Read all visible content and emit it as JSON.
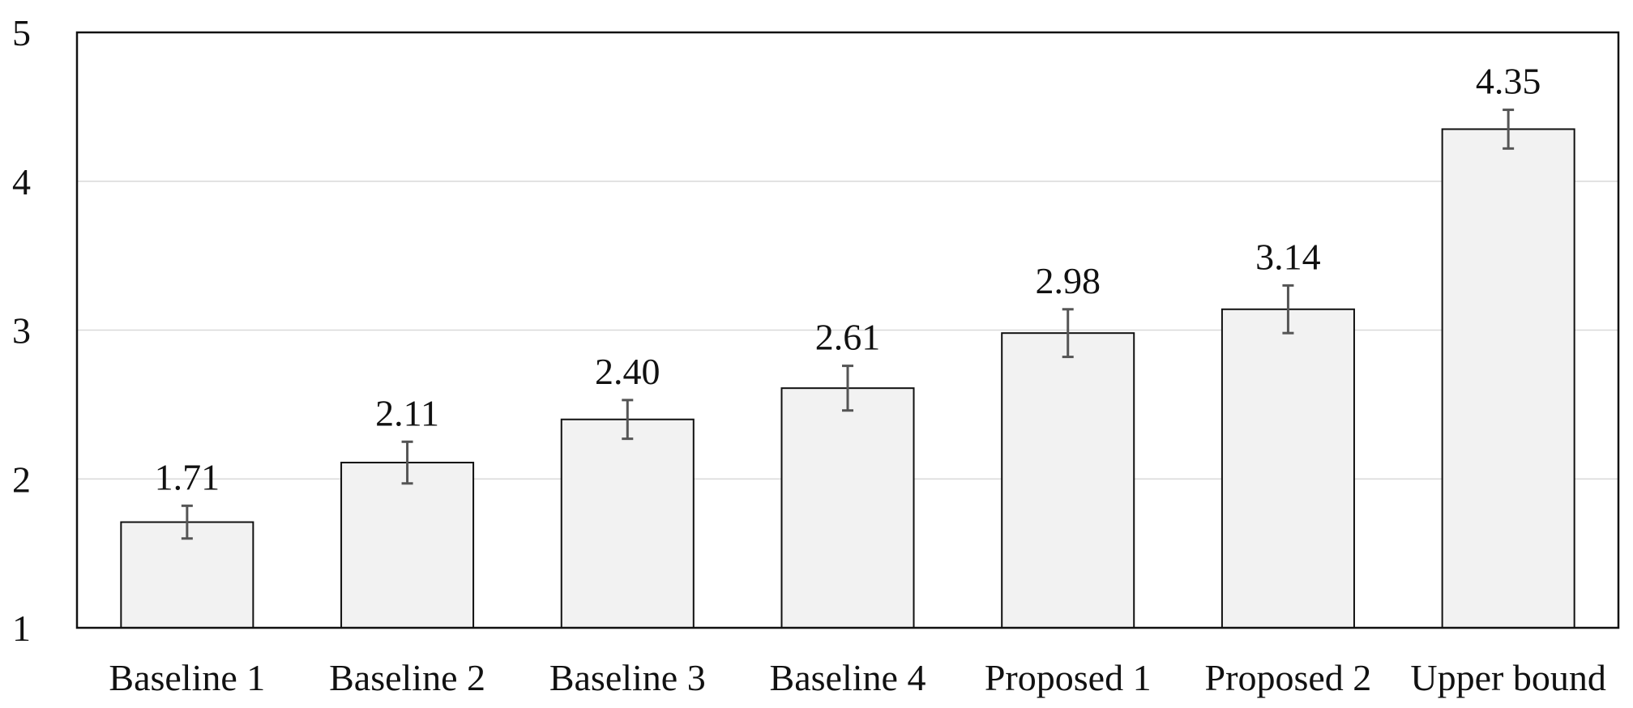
{
  "chart_data": {
    "type": "bar",
    "title": "",
    "xlabel": "",
    "ylabel": "",
    "ylim": [
      1,
      5
    ],
    "yticks": [
      "1",
      "2",
      "3",
      "4",
      "5"
    ],
    "grid": true,
    "legend": "none",
    "categories": [
      "Baseline 1",
      "Baseline 2",
      "Baseline 3",
      "Baseline 4",
      "Proposed 1",
      "Proposed 2",
      "Upper bound"
    ],
    "values": [
      1.71,
      2.11,
      2.4,
      2.61,
      2.98,
      3.14,
      4.35
    ],
    "value_labels": [
      "1.71",
      "2.11",
      "2.40",
      "2.61",
      "2.98",
      "3.14",
      "4.35"
    ],
    "error": [
      0.11,
      0.14,
      0.13,
      0.15,
      0.16,
      0.16,
      0.13
    ],
    "colors": {
      "bar_fill": "#f2f2f2",
      "bar_stroke": "#111111",
      "error_bar": "#555555",
      "grid": "#d9d9d9",
      "axis": "#111111"
    }
  }
}
